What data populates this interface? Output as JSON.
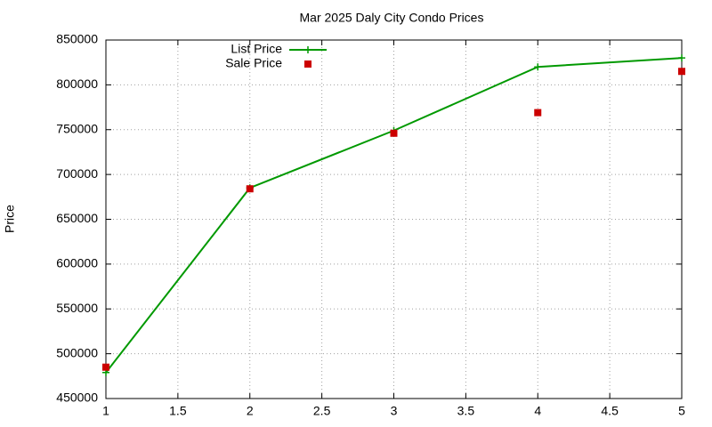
{
  "chart_data": {
    "type": "line",
    "title": "Mar 2025 Daly City Condo Prices",
    "y_label": "Price",
    "x": [
      1,
      2,
      3,
      4,
      5
    ],
    "series": [
      {
        "name": "List Price",
        "color": "#009900",
        "style": "linespoints",
        "values": [
          479000,
          685000,
          749000,
          820000,
          830000
        ]
      },
      {
        "name": "Sale Price",
        "color": "#cc0000",
        "style": "points",
        "values": [
          485000,
          684000,
          746000,
          769000,
          815000
        ]
      }
    ],
    "xlim": [
      1,
      5
    ],
    "xticks": [
      1,
      1.5,
      2,
      2.5,
      3,
      3.5,
      4,
      4.5,
      5
    ],
    "ylim": [
      450000,
      850000
    ],
    "yticks": [
      450000,
      500000,
      550000,
      600000,
      650000,
      700000,
      750000,
      800000,
      850000
    ],
    "grid": true,
    "legend": "top-left"
  }
}
